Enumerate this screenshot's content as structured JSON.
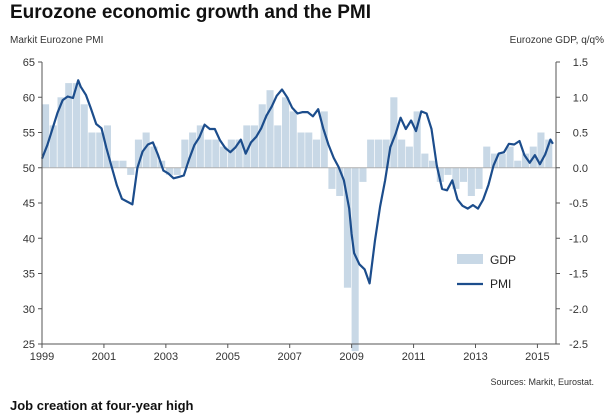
{
  "title": "Eurozone economic growth and the PMI",
  "source": "Sources: Markit, Eurostat.",
  "next_heading": "Job creation at four-year high",
  "chart_data": {
    "type": "bar+line",
    "left_axis_label": "Markit Eurozone PMI",
    "right_axis_label": "Eurozone GDP, q/q%",
    "left_ylim": [
      25,
      65
    ],
    "left_ticks": [
      "65",
      "60",
      "55",
      "50",
      "45",
      "40",
      "35",
      "30",
      "25"
    ],
    "right_ylim": [
      -2.5,
      1.5
    ],
    "right_ticks": [
      "1.5",
      "1.0",
      "0.5",
      "0.0",
      "-0.5",
      "-1.0",
      "-1.5",
      "-2.0",
      "-2.5"
    ],
    "x_ticks": [
      "1999",
      "2001",
      "2003",
      "2005",
      "2007",
      "2009",
      "2011",
      "2013",
      "2015"
    ],
    "x_range": [
      1999.0,
      2015.6
    ],
    "grid": false,
    "legend_position": "lower-right",
    "colors": {
      "bar": "#c8d8e6",
      "line": "#1c4d8c"
    },
    "series": [
      {
        "name": "GDP",
        "kind": "bar",
        "axis": "right",
        "x": [
          1999.0,
          1999.25,
          1999.5,
          1999.75,
          2000.0,
          2000.25,
          2000.5,
          2000.75,
          2001.0,
          2001.25,
          2001.5,
          2001.75,
          2002.0,
          2002.25,
          2002.5,
          2002.75,
          2003.0,
          2003.25,
          2003.5,
          2003.75,
          2004.0,
          2004.25,
          2004.5,
          2004.75,
          2005.0,
          2005.25,
          2005.5,
          2005.75,
          2006.0,
          2006.25,
          2006.5,
          2006.75,
          2007.0,
          2007.25,
          2007.5,
          2007.75,
          2008.0,
          2008.25,
          2008.5,
          2008.75,
          2009.0,
          2009.25,
          2009.5,
          2009.75,
          2010.0,
          2010.25,
          2010.5,
          2010.75,
          2011.0,
          2011.25,
          2011.5,
          2011.75,
          2012.0,
          2012.25,
          2012.5,
          2012.75,
          2013.0,
          2013.25,
          2013.5,
          2013.75,
          2014.0,
          2014.25,
          2014.5,
          2014.75,
          2015.0,
          2015.25
        ],
        "values": [
          0.9,
          0.6,
          1.0,
          1.2,
          1.2,
          0.9,
          0.5,
          0.5,
          0.6,
          0.1,
          0.1,
          -0.1,
          0.4,
          0.5,
          0.3,
          0.1,
          -0.1,
          -0.1,
          0.4,
          0.5,
          0.6,
          0.4,
          0.4,
          0.3,
          0.4,
          0.4,
          0.6,
          0.6,
          0.9,
          1.1,
          0.6,
          1.0,
          0.8,
          0.5,
          0.5,
          0.4,
          0.8,
          -0.3,
          -0.4,
          -1.7,
          -2.6,
          -0.2,
          0.4,
          0.4,
          0.4,
          1.0,
          0.4,
          0.3,
          0.8,
          0.2,
          0.1,
          -0.2,
          -0.1,
          -0.3,
          -0.2,
          -0.4,
          -0.3,
          0.3,
          0.2,
          0.2,
          0.3,
          0.1,
          0.2,
          0.3,
          0.5,
          0.4
        ]
      },
      {
        "name": "PMI",
        "kind": "line",
        "axis": "left",
        "x": [
          1999.0,
          1999.17,
          1999.33,
          1999.5,
          1999.67,
          1999.83,
          2000.0,
          2000.17,
          2000.25,
          2000.42,
          2000.58,
          2000.75,
          2000.92,
          2001.08,
          2001.25,
          2001.42,
          2001.58,
          2001.75,
          2001.92,
          2002.08,
          2002.25,
          2002.42,
          2002.58,
          2002.75,
          2002.92,
          2003.08,
          2003.25,
          2003.42,
          2003.58,
          2003.75,
          2003.92,
          2004.08,
          2004.25,
          2004.42,
          2004.58,
          2004.75,
          2004.92,
          2005.08,
          2005.25,
          2005.42,
          2005.58,
          2005.75,
          2005.92,
          2006.08,
          2006.25,
          2006.42,
          2006.58,
          2006.75,
          2006.92,
          2007.08,
          2007.25,
          2007.42,
          2007.58,
          2007.75,
          2007.92,
          2008.08,
          2008.25,
          2008.42,
          2008.58,
          2008.75,
          2008.92,
          2009.0,
          2009.08,
          2009.25,
          2009.42,
          2009.58,
          2009.75,
          2009.92,
          2010.08,
          2010.25,
          2010.42,
          2010.58,
          2010.75,
          2010.92,
          2011.08,
          2011.25,
          2011.42,
          2011.58,
          2011.75,
          2011.92,
          2012.08,
          2012.25,
          2012.42,
          2012.58,
          2012.75,
          2012.92,
          2013.08,
          2013.25,
          2013.42,
          2013.58,
          2013.75,
          2013.92,
          2014.08,
          2014.25,
          2014.42,
          2014.58,
          2014.75,
          2014.92,
          2015.08,
          2015.25,
          2015.42,
          2015.5
        ],
        "values": [
          51.3,
          53.2,
          55.4,
          57.8,
          59.6,
          60.1,
          59.9,
          62.4,
          61.5,
          60.3,
          58.4,
          56.2,
          55.6,
          52.8,
          50.1,
          47.5,
          45.6,
          45.2,
          44.8,
          50.0,
          52.3,
          53.3,
          53.6,
          51.8,
          49.6,
          49.2,
          48.5,
          48.7,
          48.9,
          51.2,
          53.2,
          54.3,
          56.1,
          55.5,
          55.5,
          53.9,
          52.8,
          52.2,
          52.9,
          54.0,
          52.0,
          53.6,
          54.4,
          55.6,
          57.4,
          58.7,
          60.2,
          61.1,
          60.0,
          58.5,
          57.7,
          57.9,
          57.9,
          57.3,
          58.3,
          55.6,
          53.3,
          51.4,
          50.1,
          48.2,
          44.2,
          40.6,
          37.9,
          36.3,
          35.6,
          33.6,
          39.6,
          44.5,
          48.2,
          52.9,
          54.8,
          57.1,
          55.5,
          56.7,
          55.2,
          58.0,
          57.7,
          55.5,
          50.3,
          47.0,
          46.8,
          48.2,
          45.5,
          44.6,
          44.2,
          44.7,
          44.2,
          45.5,
          47.6,
          50.3,
          52.0,
          52.2,
          53.4,
          53.3,
          53.8,
          51.8,
          50.7,
          51.8,
          50.5,
          51.9,
          54.0,
          53.4
        ]
      }
    ]
  }
}
